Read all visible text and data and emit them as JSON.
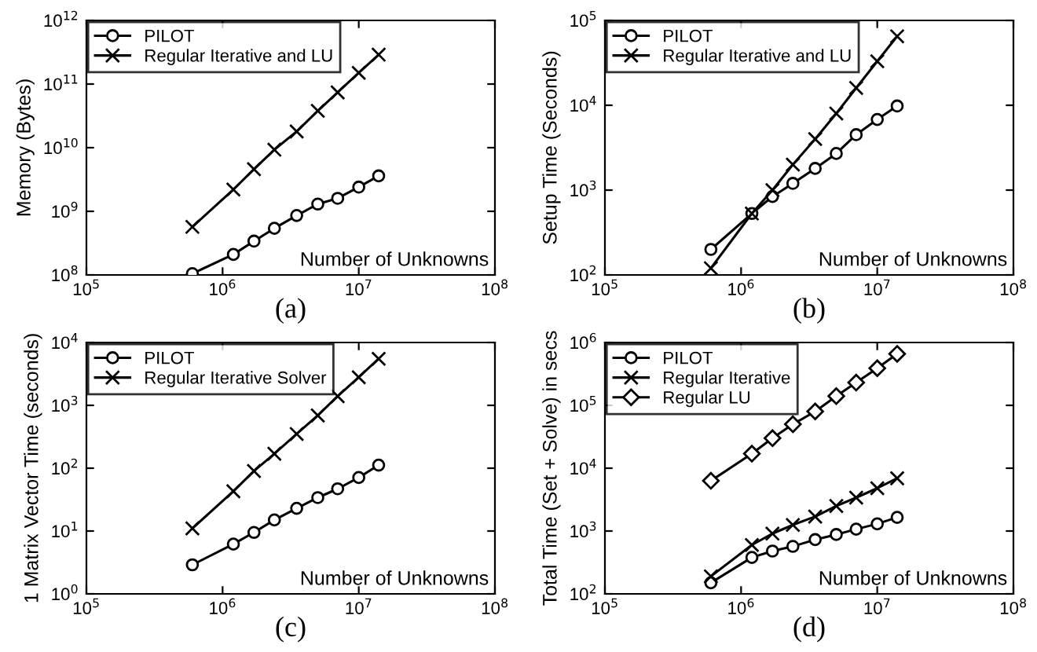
{
  "chart_data": [
    {
      "type": "line",
      "xlabel": "Number of Unknowns",
      "ylabel": "Memory (Bytes)",
      "annotations": [
        "(a)"
      ],
      "log": "xy",
      "legend": "top left",
      "grid": false,
      "line_style": "solid",
      "x": [
        600000,
        1200000,
        1700000,
        2400000,
        3500000,
        5000000,
        7000000,
        10000000,
        14000000
      ],
      "xlim": [
        100000,
        100000000
      ],
      "xticks": [
        {
          "value": 100000,
          "label": "10$^{5}$"
        },
        {
          "value": 1000000,
          "label": "10$^{6}$"
        },
        {
          "value": 10000000,
          "label": "10$^{7}$"
        },
        {
          "value": 100000000,
          "label": "10$^{8}$"
        }
      ],
      "ylim": [
        100000000,
        1000000000000
      ],
      "yticks": [
        {
          "value": 100000000,
          "label": "10$^{8}$"
        },
        {
          "value": 1000000000,
          "label": "10$^{9}$"
        },
        {
          "value": 10000000000,
          "label": "10$^{10}$"
        },
        {
          "value": 100000000000,
          "label": "10$^{11}$"
        },
        {
          "value": 1000000000000,
          "label": "10$^{12}$"
        }
      ],
      "series": [
        {
          "name": "PILOT",
          "color": "#000000",
          "marker": "circle",
          "values": [
            105000000,
            210000000,
            340000000,
            540000000,
            860000000,
            1300000000,
            1600000000,
            2400000000,
            3600000000
          ]
        },
        {
          "name": "Regular Iterative and LU",
          "color": "#000000",
          "marker": "cross",
          "values": [
            570000000,
            2200000000,
            4600000000,
            9300000000,
            18000000000,
            38000000000,
            74000000000,
            150000000000,
            290000000000
          ]
        }
      ]
    },
    {
      "type": "line",
      "xlabel": "Number of Unknowns",
      "ylabel": "Setup Time (Seconds)",
      "annotations": [
        "(b)"
      ],
      "log": "xy",
      "legend": "top left",
      "grid": false,
      "line_style": "solid",
      "x": [
        600000,
        1200000,
        1700000,
        2400000,
        3500000,
        5000000,
        7000000,
        10000000,
        14000000
      ],
      "xlim": [
        100000,
        100000000
      ],
      "xticks": [
        {
          "value": 100000,
          "label": "10$^{5}$"
        },
        {
          "value": 1000000,
          "label": "10$^{6}$"
        },
        {
          "value": 10000000,
          "label": "10$^{7}$"
        },
        {
          "value": 100000000,
          "label": "10$^{8}$"
        }
      ],
      "ylim": [
        100,
        100000
      ],
      "yticks": [
        {
          "value": 100,
          "label": "10$^{2}$"
        },
        {
          "value": 1000,
          "label": "10$^{3}$"
        },
        {
          "value": 10000,
          "label": "10$^{4}$"
        },
        {
          "value": 100000,
          "label": "10$^{5}$"
        }
      ],
      "series": [
        {
          "name": "PILOT",
          "color": "#000000",
          "marker": "circle",
          "values": [
            200,
            530,
            840,
            1200,
            1800,
            2700,
            4500,
            6800,
            9800
          ]
        },
        {
          "name": "Regular Iterative and LU",
          "color": "#000000",
          "marker": "cross",
          "values": [
            120,
            530,
            1000,
            2000,
            4000,
            8000,
            16000,
            33000,
            65000
          ]
        }
      ]
    },
    {
      "type": "line",
      "xlabel": "Number of Unknowns",
      "ylabel": "1 Matrix Vector Time (seconds)",
      "annotations": [
        "(c)"
      ],
      "log": "xy",
      "legend": "top left",
      "grid": false,
      "line_style": "solid",
      "x": [
        600000,
        1200000,
        1700000,
        2400000,
        3500000,
        5000000,
        7000000,
        10000000,
        14000000
      ],
      "xlim": [
        100000,
        100000000
      ],
      "xticks": [
        {
          "value": 100000,
          "label": "10$^{5}$"
        },
        {
          "value": 1000000,
          "label": "10$^{6}$"
        },
        {
          "value": 10000000,
          "label": "10$^{7}$"
        },
        {
          "value": 100000000,
          "label": "10$^{8}$"
        }
      ],
      "ylim": [
        1,
        10000
      ],
      "yticks": [
        {
          "value": 1,
          "label": "10$^{0}$"
        },
        {
          "value": 10,
          "label": "10$^{1}$"
        },
        {
          "value": 100,
          "label": "10$^{2}$"
        },
        {
          "value": 1000,
          "label": "10$^{3}$"
        },
        {
          "value": 10000,
          "label": "10$^{4}$"
        }
      ],
      "series": [
        {
          "name": "PILOT",
          "color": "#000000",
          "marker": "circle",
          "values": [
            2.9,
            6.2,
            9.5,
            15,
            23,
            34,
            47,
            71,
            112
          ]
        },
        {
          "name": "Regular Iterative Solver",
          "color": "#000000",
          "marker": "cross",
          "values": [
            11,
            43,
            90,
            170,
            350,
            690,
            1400,
            2800,
            5500
          ]
        }
      ]
    },
    {
      "type": "line",
      "xlabel": "Number of Unknowns",
      "ylabel": "Total Time (Set + Solve) in secs",
      "annotations": [
        "(d)"
      ],
      "log": "xy",
      "legend": "top left",
      "grid": false,
      "line_style": "solid",
      "x": [
        600000,
        1200000,
        1700000,
        2400000,
        3500000,
        5000000,
        7000000,
        10000000,
        14000000
      ],
      "xlim": [
        100000,
        100000000
      ],
      "xticks": [
        {
          "value": 100000,
          "label": "10$^{5}$"
        },
        {
          "value": 1000000,
          "label": "10$^{6}$"
        },
        {
          "value": 10000000,
          "label": "10$^{7}$"
        },
        {
          "value": 100000000,
          "label": "10$^{8}$"
        }
      ],
      "ylim": [
        100,
        1000000
      ],
      "yticks": [
        {
          "value": 100,
          "label": "10$^{2}$"
        },
        {
          "value": 1000,
          "label": "10$^{3}$"
        },
        {
          "value": 10000,
          "label": "10$^{4}$"
        },
        {
          "value": 100000,
          "label": "10$^{5}$"
        },
        {
          "value": 1000000,
          "label": "10$^{6}$"
        }
      ],
      "series": [
        {
          "name": "PILOT",
          "color": "#000000",
          "marker": "circle",
          "values": [
            150,
            380,
            480,
            570,
            730,
            880,
            1070,
            1300,
            1650
          ]
        },
        {
          "name": "Regular Iterative",
          "color": "#000000",
          "marker": "cross",
          "values": [
            190,
            600,
            910,
            1250,
            1700,
            2500,
            3400,
            4800,
            6900
          ]
        },
        {
          "name": "Regular LU",
          "color": "#000000",
          "marker": "diamond",
          "values": [
            6300,
            17000,
            30000,
            50000,
            80000,
            140000,
            230000,
            390000,
            660000
          ]
        }
      ]
    }
  ]
}
